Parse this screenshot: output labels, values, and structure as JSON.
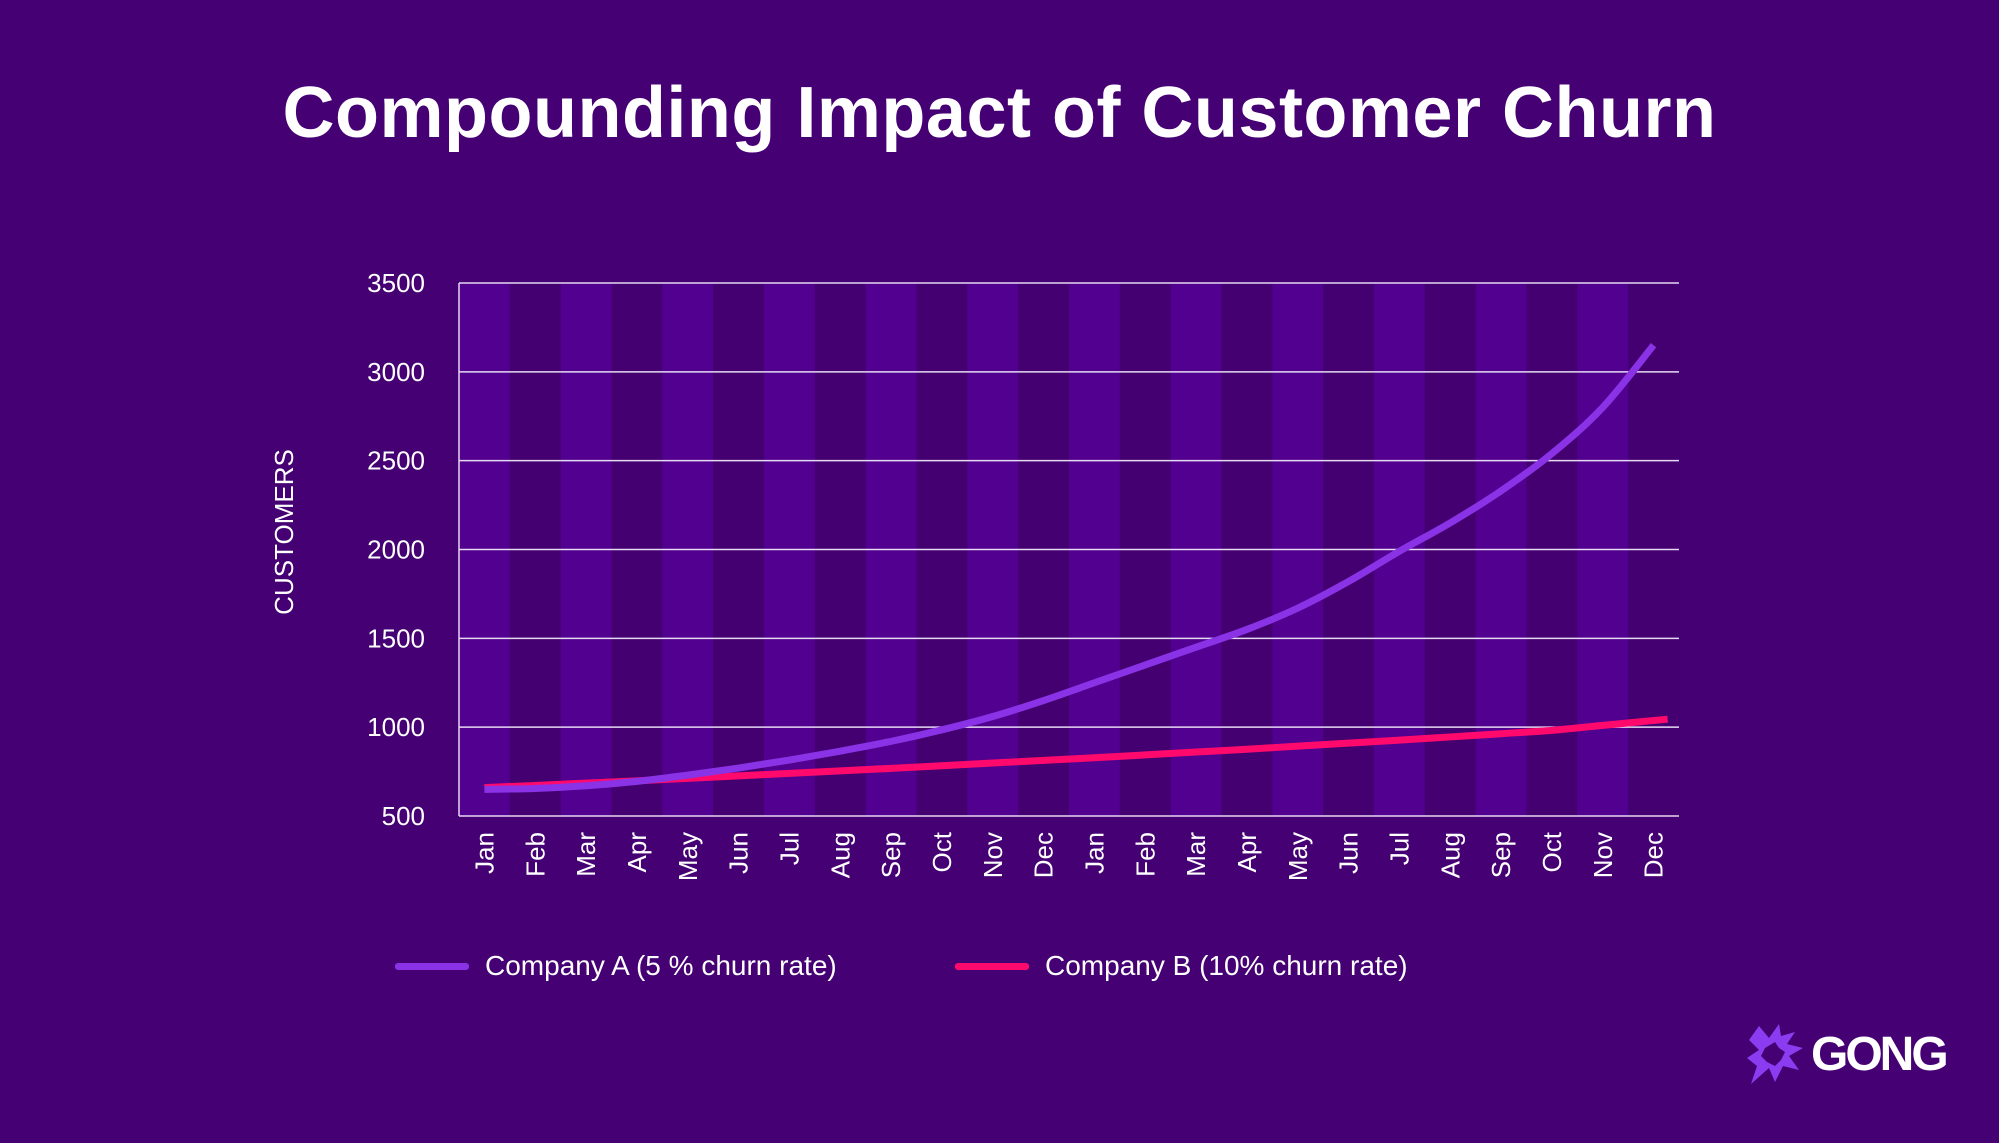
{
  "chart_data": {
    "type": "line",
    "title": "Compounding Impact of Customer Churn",
    "xlabel": "",
    "ylabel": "CUSTOMERS",
    "ylim": [
      500,
      3500
    ],
    "yticks": [
      500,
      1000,
      1500,
      2000,
      2500,
      3000,
      3500
    ],
    "grid": true,
    "legend_position": "bottom",
    "categories": [
      "Jan",
      "Feb",
      "Mar",
      "Apr",
      "May",
      "Jun",
      "Jul",
      "Aug",
      "Sep",
      "Oct",
      "Nov",
      "Dec",
      "Jan",
      "Feb",
      "Mar",
      "Apr",
      "May",
      "Jun",
      "Jul",
      "Aug",
      "Sep",
      "Oct",
      "Nov",
      "Dec"
    ],
    "series": [
      {
        "name": "Company A (5 % churn rate)",
        "color": "#8a32e6",
        "values": [
          650,
          655,
          670,
          695,
          730,
          770,
          815,
          865,
          920,
          985,
          1060,
          1150,
          1250,
          1350,
          1450,
          1550,
          1670,
          1820,
          1990,
          2150,
          2330,
          2540,
          2800,
          3150
        ]
      },
      {
        "name": "Company B (10% churn rate)",
        "color": "#ff0a6c",
        "values": [
          660,
          672,
          685,
          698,
          712,
          726,
          740,
          754,
          768,
          783,
          798,
          813,
          828,
          844,
          860,
          876,
          893,
          910,
          927,
          945,
          963,
          982,
          1010,
          1045
        ]
      }
    ]
  },
  "colors": {
    "background": "#450073",
    "band_light": "#52008f",
    "band_dark": "#440070",
    "grid": "#e6d9f2"
  },
  "logo": {
    "text": "GONG",
    "icon": "starburst-icon"
  }
}
